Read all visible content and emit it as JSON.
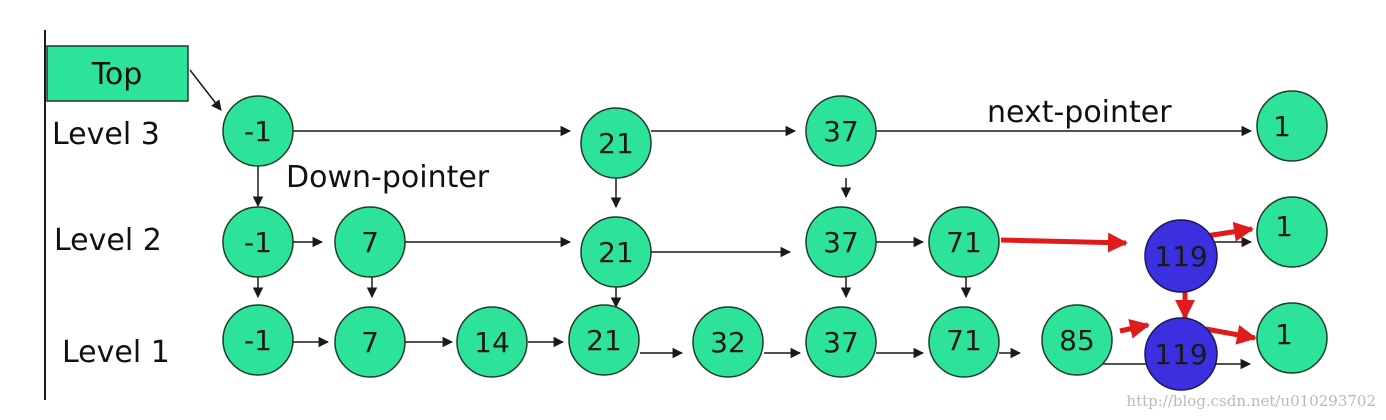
{
  "colors": {
    "node_fill": "#2de39a",
    "node_stroke": "#1f3b2c",
    "highlight_fill": "#3b2fe0",
    "highlight_arrow": "#e11b1b",
    "arrow": "#1a1a1a",
    "top_box_fill": "#2de39a"
  },
  "top_box": {
    "label": "Top"
  },
  "levels": [
    {
      "label": "Level 3"
    },
    {
      "label": "Level 2"
    },
    {
      "label": "Level 1"
    }
  ],
  "annotations": {
    "next_pointer": "next-pointer",
    "down_pointer": "Down-pointer"
  },
  "nodes": [
    {
      "value": "-1",
      "highlighted": false
    },
    {
      "value": "21",
      "highlighted": false
    },
    {
      "value": "37",
      "highlighted": false
    },
    {
      "value": "1",
      "highlighted": false
    },
    {
      "value": "-1",
      "highlighted": false
    },
    {
      "value": "7",
      "highlighted": false
    },
    {
      "value": "21",
      "highlighted": false
    },
    {
      "value": "37",
      "highlighted": false
    },
    {
      "value": "71",
      "highlighted": false
    },
    {
      "value": "119",
      "highlighted": true
    },
    {
      "value": "1",
      "highlighted": false
    },
    {
      "value": "-1",
      "highlighted": false
    },
    {
      "value": "7",
      "highlighted": false
    },
    {
      "value": "14",
      "highlighted": false
    },
    {
      "value": "21",
      "highlighted": false
    },
    {
      "value": "32",
      "highlighted": false
    },
    {
      "value": "37",
      "highlighted": false
    },
    {
      "value": "71",
      "highlighted": false
    },
    {
      "value": "85",
      "highlighted": false
    },
    {
      "value": "119",
      "highlighted": true
    },
    {
      "value": "1",
      "highlighted": false
    }
  ],
  "watermark": "http://blog.csdn.net/u010293702"
}
